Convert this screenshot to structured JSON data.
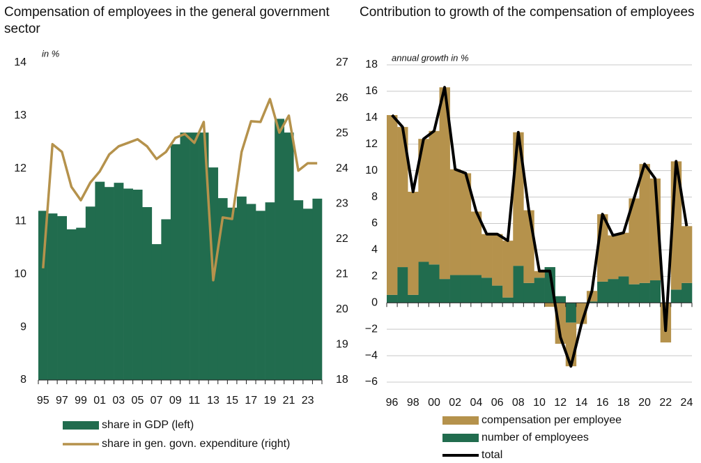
{
  "chart_data": [
    {
      "type": "combo",
      "title": "Compensation of employees in the general government sector",
      "annotation": "in %",
      "categories": [
        "95",
        null,
        "97",
        null,
        "99",
        null,
        "01",
        null,
        "03",
        null,
        "05",
        null,
        "07",
        null,
        "09",
        null,
        "11",
        null,
        "13",
        null,
        "15",
        null,
        "17",
        null,
        "19",
        null,
        "21",
        null,
        "23",
        null
      ],
      "ylim": [
        8,
        14
      ],
      "yticks": [
        8,
        9,
        10,
        11,
        12,
        13,
        14
      ],
      "y2lim": [
        18,
        27
      ],
      "y2ticks": [
        18,
        19,
        20,
        21,
        22,
        23,
        24,
        25,
        26,
        27
      ],
      "series": [
        {
          "name": "share in GDP (left)",
          "type": "bar",
          "color": "#216c4e",
          "values": [
            11.2,
            11.15,
            11.1,
            10.85,
            10.88,
            11.28,
            11.75,
            11.65,
            11.73,
            11.62,
            11.6,
            11.27,
            10.57,
            11.04,
            12.46,
            12.68,
            12.68,
            12.68,
            12.02,
            11.44,
            11.26,
            11.47,
            11.33,
            11.2,
            11.36,
            12.94,
            12.68,
            11.4,
            11.24,
            11.43
          ]
        },
        {
          "name": "share in gen. govn. expenditure (right)",
          "type": "line",
          "axis": "y2",
          "color": "#b5924c",
          "values": [
            21.17,
            24.69,
            24.47,
            23.48,
            23.1,
            23.6,
            23.92,
            24.4,
            24.63,
            24.73,
            24.83,
            24.63,
            24.27,
            24.47,
            24.87,
            24.98,
            24.73,
            25.32,
            20.83,
            22.61,
            22.57,
            24.47,
            25.34,
            25.32,
            25.97,
            25.02,
            25.5,
            23.94,
            24.15,
            24.15
          ]
        }
      ]
    },
    {
      "type": "combo",
      "title": "Contribution to growth of the compensation of employees",
      "annotation": "annual growth in %",
      "stacked": true,
      "grid": true,
      "categories": [
        "96",
        null,
        "98",
        null,
        "00",
        null,
        "02",
        null,
        "04",
        null,
        "06",
        null,
        "08",
        null,
        "10",
        null,
        "12",
        null,
        "14",
        null,
        "16",
        null,
        "18",
        null,
        "20",
        null,
        "22",
        null,
        "24"
      ],
      "ylim": [
        -6,
        18
      ],
      "yticks": [
        {
          "value": -6,
          "label": "−6"
        },
        {
          "value": -4,
          "label": "−4"
        },
        {
          "value": -2,
          "label": "−2"
        },
        0,
        2,
        4,
        6,
        8,
        10,
        12,
        14,
        16,
        18
      ],
      "series": [
        {
          "name": "compensation per employee",
          "type": "bar",
          "color": "#b5924c",
          "values": [
            13.6,
            10.6,
            7.8,
            9.3,
            10.1,
            14.5,
            8.0,
            7.7,
            4.8,
            3.3,
            3.9,
            4.3,
            10.1,
            5.5,
            0.5,
            -0.3,
            -3.1,
            -3.3,
            -1.6,
            0.8,
            5.1,
            3.3,
            3.3,
            6.5,
            9.0,
            7.7,
            -3.0,
            9.7,
            4.3
          ]
        },
        {
          "name": "number of employees",
          "type": "bar",
          "color": "#216c4e",
          "values": [
            0.6,
            2.7,
            0.6,
            3.1,
            2.9,
            1.8,
            2.1,
            2.1,
            2.1,
            1.9,
            1.3,
            0.4,
            2.8,
            1.5,
            1.9,
            2.7,
            0.5,
            -1.5,
            0.0,
            0.1,
            1.6,
            1.8,
            2.0,
            1.4,
            1.5,
            1.7,
            0.0,
            1.0,
            1.5
          ]
        },
        {
          "name": "total",
          "type": "line",
          "color": "#000000",
          "values": [
            14.2,
            13.3,
            8.4,
            12.4,
            13.0,
            16.3,
            10.1,
            9.8,
            6.9,
            5.2,
            5.2,
            4.7,
            12.9,
            7.0,
            2.4,
            2.4,
            -2.6,
            -4.8,
            -1.6,
            0.9,
            6.7,
            5.1,
            5.3,
            7.9,
            10.5,
            9.4,
            -2.1,
            10.7,
            5.8
          ]
        }
      ]
    }
  ]
}
